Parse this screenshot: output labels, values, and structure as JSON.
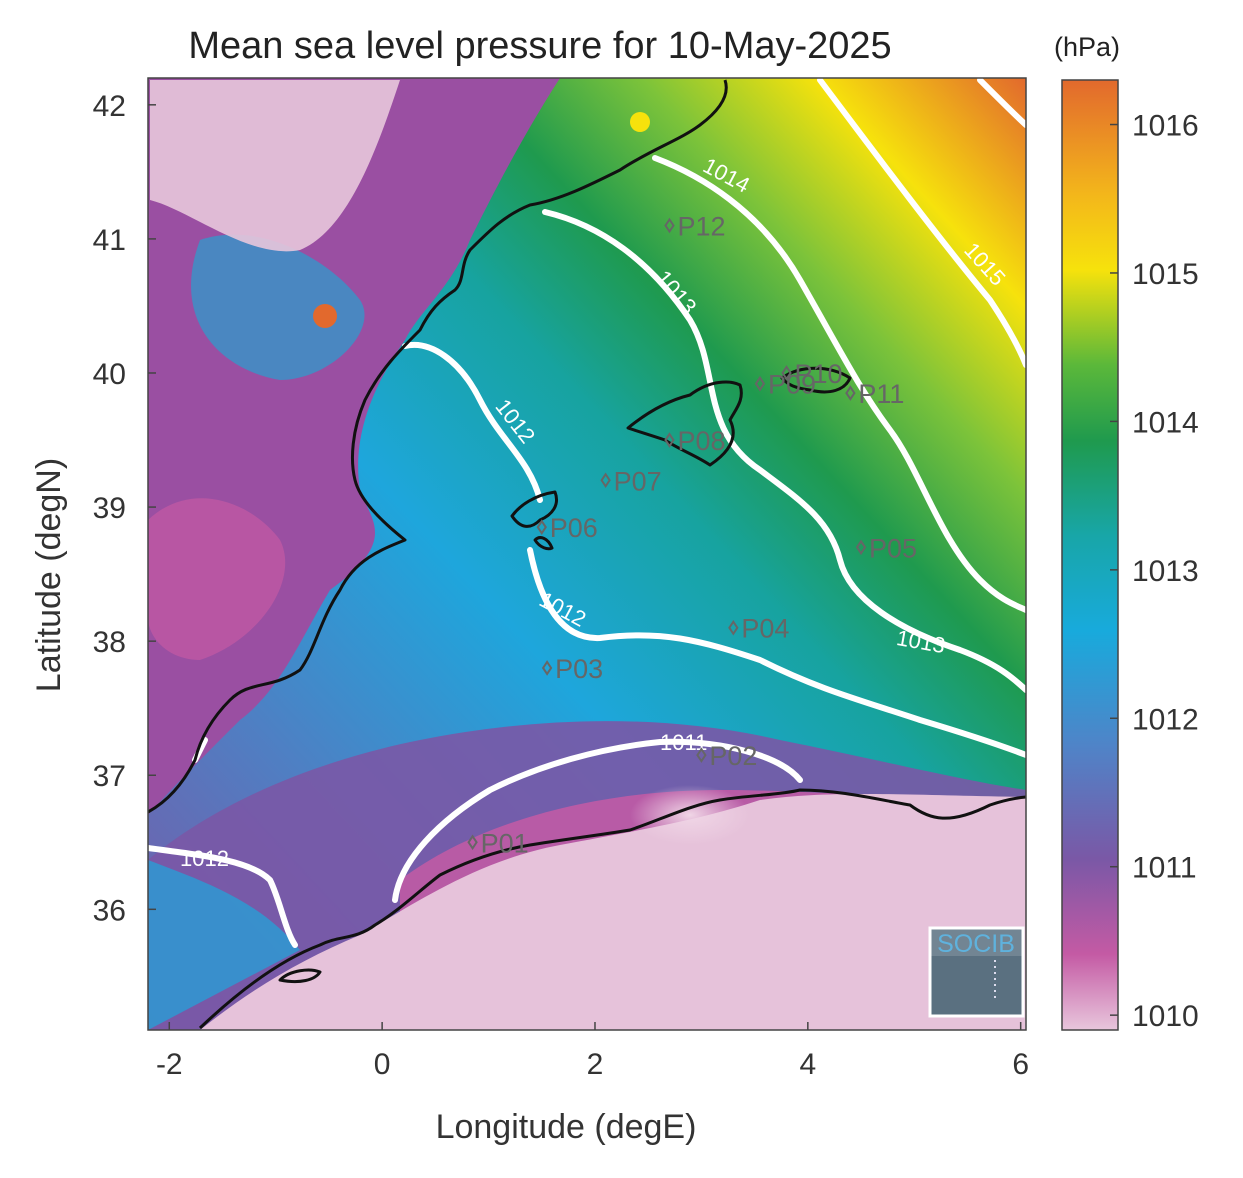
{
  "title": "Mean sea level pressure for 10-May-2025",
  "colorbar": {
    "unit": "(hPa)",
    "ticks": [
      "1010",
      "1011",
      "1012",
      "1013",
      "1014",
      "1015",
      "1016"
    ],
    "tick_values": [
      1010,
      1011,
      1012,
      1013,
      1014,
      1015,
      1016
    ],
    "range": [
      1009.9,
      1016.3
    ],
    "colors": [
      "#e8c6dc",
      "#c45aa4",
      "#7a58a6",
      "#4f84c8",
      "#18aadc",
      "#18a6a8",
      "#1f9a4e",
      "#5bb83a",
      "#f6e20c",
      "#f3b61b",
      "#e2692d"
    ]
  },
  "axes": {
    "xlabel": "Longitude (degE)",
    "ylabel": "Latitude (degN)",
    "xlim": [
      -2.2,
      6.05
    ],
    "ylim": [
      35.1,
      42.2
    ],
    "xticks": [
      "-2",
      "0",
      "2",
      "4",
      "6"
    ],
    "yticks": [
      "36",
      "37",
      "38",
      "39",
      "40",
      "41",
      "42"
    ]
  },
  "stations": [
    {
      "label": "P01",
      "lon": 0.85,
      "lat": 36.5
    },
    {
      "label": "P02",
      "lon": 3.0,
      "lat": 37.15
    },
    {
      "label": "P03",
      "lon": 1.55,
      "lat": 37.8
    },
    {
      "label": "P04",
      "lon": 3.3,
      "lat": 38.1
    },
    {
      "label": "P05",
      "lon": 4.5,
      "lat": 38.7
    },
    {
      "label": "P06",
      "lon": 1.5,
      "lat": 38.85
    },
    {
      "label": "P07",
      "lon": 2.1,
      "lat": 39.2
    },
    {
      "label": "P08",
      "lon": 2.7,
      "lat": 39.5
    },
    {
      "label": "P09",
      "lon": 3.55,
      "lat": 39.92
    },
    {
      "label": "P10",
      "lon": 3.8,
      "lat": 40.0
    },
    {
      "label": "P11",
      "lon": 4.4,
      "lat": 39.85
    },
    {
      "label": "P12",
      "lon": 2.7,
      "lat": 41.1
    }
  ],
  "contour_labels": [
    "1011",
    "1012",
    "1012",
    "1012",
    "1013",
    "1013",
    "1014",
    "1015"
  ],
  "logo": {
    "text": "SOCIB"
  }
}
